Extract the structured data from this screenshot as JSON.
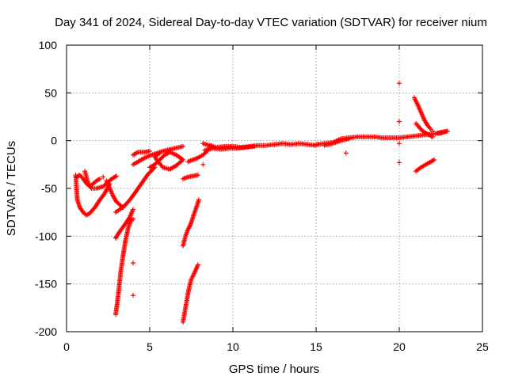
{
  "chart_data": {
    "type": "scatter",
    "title": "Day 341 of 2024, Sidereal Day-to-day VTEC variation (SDTVAR) for receiver nium",
    "xlabel": "GPS time / hours",
    "ylabel": "SDTVAR / TECUs",
    "xlim": [
      0,
      25
    ],
    "ylim": [
      -200,
      100
    ],
    "xticks": [
      0,
      5,
      10,
      15,
      20,
      25
    ],
    "yticks": [
      -200,
      -150,
      -100,
      -50,
      0,
      50,
      100
    ],
    "grid": true,
    "marker": "plus",
    "color": "#ff0000",
    "segments": [
      {
        "name": "arc-a",
        "points": [
          [
            0.55,
            -36
          ],
          [
            0.6,
            -50
          ],
          [
            0.65,
            -62
          ],
          [
            0.8,
            -70
          ],
          [
            1.0,
            -75
          ],
          [
            1.2,
            -78
          ],
          [
            1.4,
            -76
          ],
          [
            1.7,
            -70
          ],
          [
            2.0,
            -62
          ],
          [
            2.3,
            -55
          ],
          [
            2.6,
            -45
          ]
        ]
      },
      {
        "name": "arc-b",
        "points": [
          [
            0.6,
            -38
          ],
          [
            0.8,
            -36
          ],
          [
            1.0,
            -40
          ],
          [
            1.2,
            -45
          ],
          [
            1.4,
            -48
          ],
          [
            1.6,
            -45
          ],
          [
            1.8,
            -42
          ],
          [
            2.0,
            -40
          ]
        ]
      },
      {
        "name": "arc-c",
        "points": [
          [
            1.1,
            -32
          ],
          [
            1.2,
            -38
          ],
          [
            1.3,
            -45
          ],
          [
            1.5,
            -50
          ],
          [
            1.8,
            -50
          ],
          [
            2.2,
            -48
          ],
          [
            2.5,
            -43
          ],
          [
            2.8,
            -39
          ],
          [
            3.0,
            -37
          ]
        ]
      },
      {
        "name": "arc-d",
        "points": [
          [
            2.4,
            -42
          ],
          [
            2.6,
            -50
          ],
          [
            2.8,
            -58
          ],
          [
            3.0,
            -64
          ],
          [
            3.2,
            -67
          ],
          [
            3.4,
            -70
          ]
        ]
      },
      {
        "name": "arc-e",
        "points": [
          [
            2.95,
            -75
          ],
          [
            3.2,
            -72
          ],
          [
            3.5,
            -68
          ],
          [
            3.8,
            -62
          ],
          [
            4.1,
            -55
          ],
          [
            4.5,
            -45
          ],
          [
            4.9,
            -35
          ],
          [
            5.3,
            -28
          ]
        ]
      },
      {
        "name": "arc-f",
        "points": [
          [
            2.95,
            -182
          ],
          [
            3.05,
            -170
          ],
          [
            3.15,
            -155
          ],
          [
            3.25,
            -138
          ],
          [
            3.4,
            -120
          ],
          [
            3.55,
            -104
          ],
          [
            3.7,
            -92
          ],
          [
            3.85,
            -84
          ],
          [
            4.0,
            -82
          ]
        ]
      },
      {
        "name": "arc-g",
        "points": [
          [
            2.95,
            -102
          ],
          [
            3.2,
            -95
          ],
          [
            3.5,
            -88
          ],
          [
            3.8,
            -80
          ],
          [
            4.0,
            -72
          ]
        ]
      },
      {
        "name": "arc-h",
        "points": [
          [
            4.0,
            -25
          ],
          [
            4.3,
            -22
          ],
          [
            4.7,
            -18
          ],
          [
            5.1,
            -15
          ],
          [
            5.6,
            -12
          ],
          [
            6.0,
            -10
          ],
          [
            6.5,
            -8
          ],
          [
            7.0,
            -6
          ]
        ]
      },
      {
        "name": "arc-i",
        "points": [
          [
            4.0,
            -15
          ],
          [
            4.3,
            -12
          ],
          [
            4.7,
            -12
          ],
          [
            5.0,
            -11
          ]
        ]
      },
      {
        "name": "arc-j",
        "points": [
          [
            5.0,
            -28
          ],
          [
            5.3,
            -25
          ],
          [
            5.6,
            -20
          ],
          [
            5.9,
            -15
          ],
          [
            6.2,
            -12
          ],
          [
            6.6,
            -15
          ],
          [
            7.0,
            -20
          ],
          [
            6.6,
            -26
          ],
          [
            6.2,
            -30
          ],
          [
            5.8,
            -28
          ],
          [
            5.5,
            -22
          ],
          [
            5.3,
            -17
          ],
          [
            5.6,
            -13
          ]
        ]
      },
      {
        "name": "arc-k",
        "points": [
          [
            7.0,
            -40
          ],
          [
            7.3,
            -38
          ],
          [
            7.6,
            -37
          ],
          [
            7.9,
            -36
          ]
        ]
      },
      {
        "name": "arc-l",
        "points": [
          [
            7.0,
            -190
          ],
          [
            7.1,
            -180
          ],
          [
            7.2,
            -170
          ],
          [
            7.3,
            -160
          ],
          [
            7.4,
            -152
          ],
          [
            7.5,
            -145
          ],
          [
            7.7,
            -138
          ],
          [
            7.9,
            -130
          ]
        ]
      },
      {
        "name": "arc-m",
        "points": [
          [
            7.0,
            -110
          ],
          [
            7.15,
            -100
          ],
          [
            7.3,
            -93
          ],
          [
            7.45,
            -88
          ],
          [
            7.6,
            -80
          ],
          [
            7.8,
            -70
          ],
          [
            7.95,
            -62
          ]
        ]
      },
      {
        "name": "arc-n",
        "points": [
          [
            7.3,
            -22
          ],
          [
            7.6,
            -20
          ],
          [
            7.9,
            -18
          ],
          [
            8.2,
            -15
          ],
          [
            8.5,
            -10
          ],
          [
            8.7,
            -5
          ]
        ]
      },
      {
        "name": "arc-o",
        "points": [
          [
            8.2,
            -3
          ],
          [
            8.6,
            -5
          ],
          [
            9.0,
            -7
          ],
          [
            9.5,
            -6
          ],
          [
            10.0,
            -6
          ],
          [
            10.5,
            -7
          ],
          [
            11.0,
            -6
          ],
          [
            11.5,
            -5
          ],
          [
            12.0,
            -5
          ],
          [
            12.5,
            -4
          ],
          [
            13.0,
            -3
          ],
          [
            13.5,
            -4
          ],
          [
            14.0,
            -3
          ],
          [
            14.5,
            -4
          ],
          [
            15.0,
            -5
          ]
        ]
      },
      {
        "name": "arc-p",
        "points": [
          [
            8.3,
            -10
          ],
          [
            8.8,
            -8
          ],
          [
            9.3,
            -9
          ],
          [
            9.8,
            -8
          ],
          [
            10.3,
            -8
          ],
          [
            10.8,
            -7
          ],
          [
            11.3,
            -6
          ]
        ]
      },
      {
        "name": "arc-q",
        "points": [
          [
            15.0,
            -4
          ],
          [
            15.5,
            -3
          ],
          [
            16.0,
            -2
          ],
          [
            16.5,
            2
          ],
          [
            17.0,
            3
          ],
          [
            17.5,
            4
          ],
          [
            18.0,
            4
          ],
          [
            18.5,
            4
          ],
          [
            19.0,
            3
          ],
          [
            19.5,
            3
          ],
          [
            20.0,
            3
          ],
          [
            20.5,
            4
          ],
          [
            21.0,
            5
          ],
          [
            21.5,
            6
          ],
          [
            22.0,
            7
          ],
          [
            22.5,
            8
          ],
          [
            22.9,
            10
          ]
        ]
      },
      {
        "name": "arc-r",
        "points": [
          [
            15.5,
            -5
          ],
          [
            16.0,
            -3
          ],
          [
            16.5,
            0
          ],
          [
            17.0,
            2
          ]
        ]
      },
      {
        "name": "arc-s",
        "points": [
          [
            20.9,
            45
          ],
          [
            21.1,
            38
          ],
          [
            21.3,
            30
          ],
          [
            21.5,
            22
          ],
          [
            21.7,
            16
          ],
          [
            21.9,
            12
          ],
          [
            22.0,
            10
          ]
        ]
      },
      {
        "name": "arc-t",
        "points": [
          [
            21.0,
            18
          ],
          [
            21.2,
            14
          ],
          [
            21.4,
            10
          ],
          [
            21.6,
            8
          ],
          [
            21.8,
            6
          ],
          [
            22.0,
            4
          ]
        ]
      },
      {
        "name": "arc-u",
        "points": [
          [
            21.0,
            -32
          ],
          [
            21.3,
            -28
          ],
          [
            21.6,
            -25
          ],
          [
            21.9,
            -22
          ],
          [
            22.1,
            -20
          ]
        ]
      },
      {
        "name": "arc-v",
        "points": [
          [
            22.3,
            8
          ],
          [
            22.6,
            9
          ],
          [
            22.9,
            10
          ]
        ]
      },
      {
        "name": "isolated",
        "points": [
          [
            8.2,
            -25
          ],
          [
            4.0,
            -128
          ],
          [
            4.0,
            -162
          ],
          [
            2.2,
            -38
          ],
          [
            16.8,
            -13
          ],
          [
            20.0,
            60
          ],
          [
            20.0,
            20
          ],
          [
            20.0,
            -3
          ],
          [
            20.0,
            -23
          ]
        ]
      }
    ]
  }
}
